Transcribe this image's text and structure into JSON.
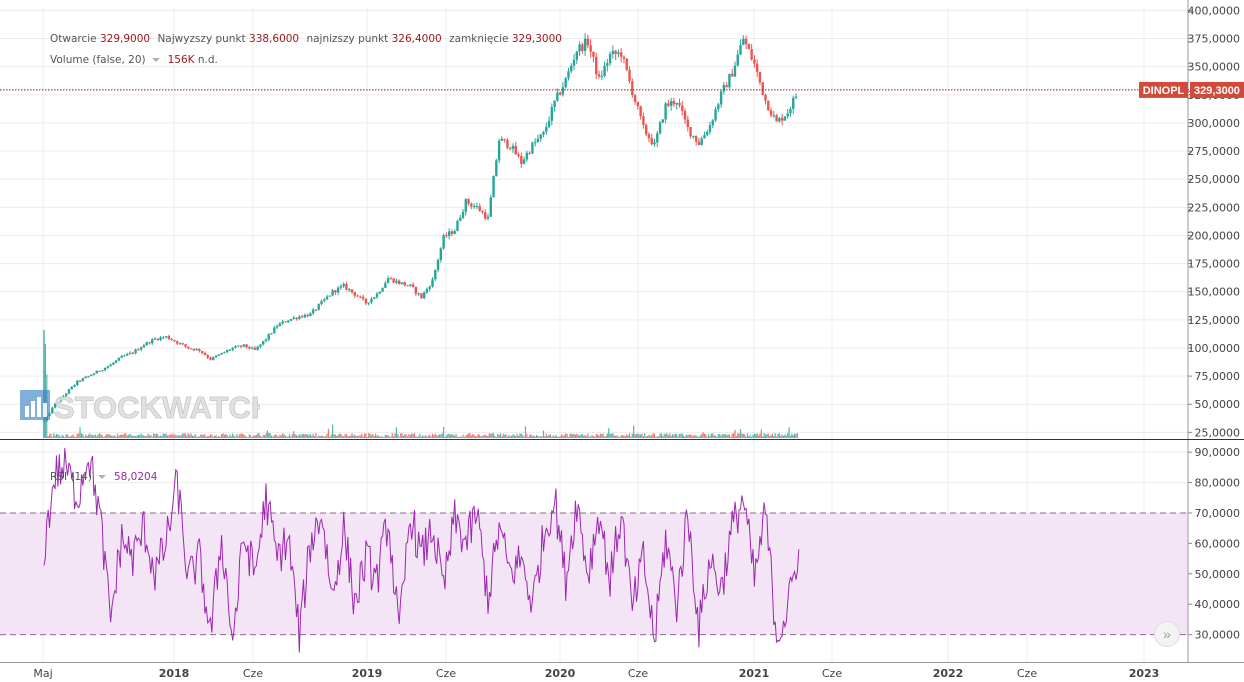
{
  "legend": {
    "ohlc_labels": [
      "Otwarcie",
      "Najwyzszy punkt",
      "najnizszy punkt",
      "zamknięcie"
    ],
    "ohlc_values": [
      "329,9000",
      "338,6000",
      "326,4000",
      "329,3000"
    ],
    "volume_label": "Volume (false, 20)",
    "volume_value": "156K",
    "volume_extra": "n.d.",
    "rsi_label": "RSI (14)",
    "rsi_value": "58,0204"
  },
  "price_tag": {
    "symbol": "DINOPL",
    "value": "329,3000"
  },
  "watermark": "STOCKWATCH",
  "nav_icon": "double-chevron-right-icon",
  "colors": {
    "up": "#26a69a",
    "down": "#ef5350",
    "rsi": "#9c27b0",
    "tag": "#d14b3a",
    "band": "#f3e5f5"
  },
  "chart_data": [
    {
      "type": "candlestick",
      "symbol": "DINOPL",
      "x_tick_labels": [
        "Maj",
        "2018",
        "Cze",
        "2019",
        "Cze",
        "2020",
        "Cze",
        "2021",
        "Cze",
        "2022",
        "Cze",
        "2023"
      ],
      "y_tick_labels": [
        "400,0000",
        "375,0000",
        "350,0000",
        "325,0000",
        "300,0000",
        "275,0000",
        "250,0000",
        "225,0000",
        "200,0000",
        "175,0000",
        "150,0000",
        "125,0000",
        "100,0000",
        "75,0000",
        "50,0000",
        "25,0000"
      ],
      "ylim": [
        20,
        403
      ],
      "last_close": 329.3,
      "x_months": [
        0,
        1,
        2,
        3,
        4,
        5,
        6,
        7,
        8,
        9,
        10,
        11,
        12,
        13,
        14,
        15,
        16,
        17,
        18,
        19,
        20,
        21,
        22,
        23,
        24,
        25,
        26,
        27,
        28,
        29,
        30,
        31,
        32,
        33,
        34,
        35,
        36,
        37,
        38,
        39,
        40,
        41,
        42,
        43,
        44,
        45,
        46,
        47,
        48,
        49,
        50,
        51,
        52,
        53,
        54,
        55,
        56,
        57,
        58,
        59,
        60,
        61,
        62,
        63,
        64,
        65,
        66,
        67,
        68
      ],
      "close": [
        35,
        50,
        60,
        70,
        75,
        80,
        85,
        92,
        96,
        103,
        108,
        110,
        105,
        100,
        98,
        90,
        95,
        100,
        102,
        98,
        108,
        120,
        125,
        128,
        130,
        140,
        150,
        155,
        148,
        140,
        148,
        162,
        158,
        155,
        145,
        160,
        198,
        205,
        230,
        225,
        215,
        285,
        280,
        265,
        280,
        290,
        318,
        338,
        365,
        372,
        338,
        360,
        362,
        328,
        295,
        280,
        315,
        320,
        295,
        282,
        298,
        325,
        345,
        375,
        352,
        320,
        300,
        310,
        329
      ]
    },
    {
      "type": "bar",
      "name": "Volume (false, 20)",
      "latest": "156K"
    },
    {
      "type": "line",
      "name": "RSI (14)",
      "y_tick_labels": [
        "90,0000",
        "80,0000",
        "70,0000",
        "60,0000",
        "50,0000",
        "40,0000",
        "30,0000"
      ],
      "ylim": [
        21,
        94
      ],
      "bands": [
        30,
        70
      ],
      "latest": 58.0204,
      "x_months": [
        0,
        1,
        2,
        3,
        4,
        5,
        6,
        7,
        8,
        9,
        10,
        11,
        12,
        13,
        14,
        15,
        16,
        17,
        18,
        19,
        20,
        21,
        22,
        23,
        24,
        25,
        26,
        27,
        28,
        29,
        30,
        31,
        32,
        33,
        34,
        35,
        36,
        37,
        38,
        39,
        40,
        41,
        42,
        43,
        44,
        45,
        46,
        47,
        48,
        49,
        50,
        51,
        52,
        53,
        54,
        55,
        56,
        57,
        58,
        59,
        60,
        61,
        62,
        63,
        64,
        65,
        66,
        67,
        68
      ],
      "values": [
        58,
        83,
        85,
        75,
        90,
        70,
        35,
        62,
        55,
        65,
        50,
        60,
        80,
        48,
        55,
        30,
        62,
        28,
        62,
        50,
        75,
        55,
        62,
        30,
        60,
        70,
        42,
        65,
        40,
        55,
        48,
        68,
        30,
        70,
        55,
        65,
        45,
        68,
        60,
        70,
        42,
        65,
        50,
        55,
        40,
        62,
        75,
        48,
        74,
        50,
        70,
        48,
        70,
        38,
        55,
        28,
        62,
        40,
        70,
        32,
        55,
        45,
        65,
        75,
        48,
        70,
        30,
        38,
        59
      ]
    }
  ]
}
